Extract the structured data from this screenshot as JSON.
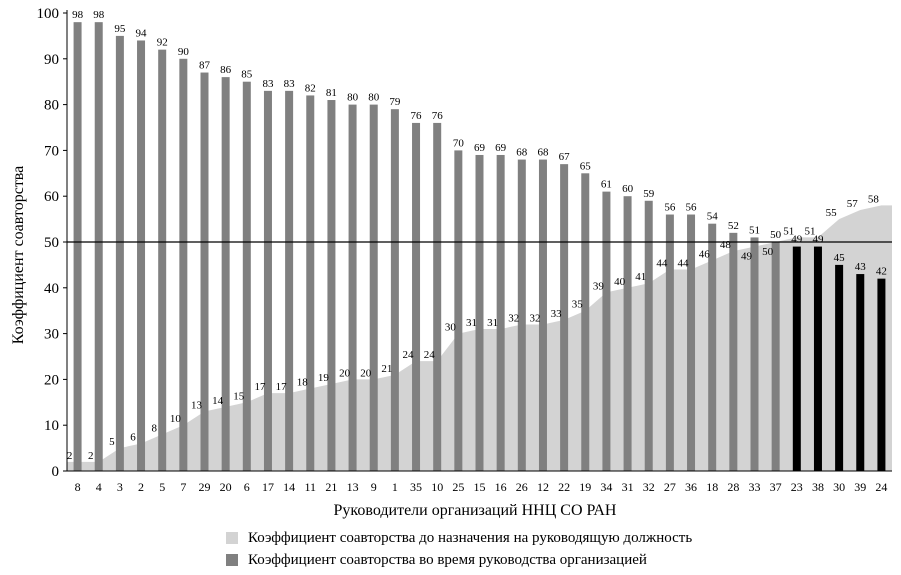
{
  "chart_data": {
    "type": "bar",
    "ylabel": "Коэффициент соавторства",
    "xlabel": "Руководители организаций ННЦ СО РАН",
    "ylim": [
      0,
      100
    ],
    "yticks": [
      "0",
      "10",
      "20",
      "30",
      "40",
      "50",
      "60",
      "70",
      "80",
      "90",
      "100"
    ],
    "reference_line": 50,
    "categories": [
      "8",
      "4",
      "3",
      "2",
      "5",
      "7",
      "29",
      "20",
      "6",
      "17",
      "14",
      "11",
      "21",
      "13",
      "9",
      "1",
      "35",
      "10",
      "25",
      "15",
      "16",
      "26",
      "12",
      "22",
      "19",
      "34",
      "31",
      "32",
      "27",
      "36",
      "18",
      "28",
      "33",
      "37",
      "23",
      "38",
      "30",
      "39",
      "24"
    ],
    "series": [
      {
        "name": "Коэффициент соавторства до назначения на  руководящую должность",
        "kind": "area",
        "color": "#d3d3d3",
        "values": [
          2,
          2,
          5,
          6,
          8,
          10,
          13,
          14,
          15,
          17,
          17,
          18,
          19,
          20,
          20,
          21,
          24,
          24,
          30,
          31,
          31,
          32,
          32,
          33,
          35,
          39,
          40,
          41,
          44,
          44,
          46,
          48,
          49,
          50,
          51,
          51,
          55,
          57,
          58
        ]
      },
      {
        "name": "Коэффициент соавторства во время руководства организацией",
        "kind": "bar",
        "color": "#808080",
        "highlight_color": "#000000",
        "values": [
          98,
          98,
          95,
          94,
          92,
          90,
          87,
          86,
          85,
          83,
          83,
          82,
          81,
          80,
          80,
          79,
          76,
          76,
          70,
          69,
          69,
          68,
          68,
          67,
          65,
          61,
          60,
          59,
          56,
          56,
          54,
          52,
          51,
          50,
          49,
          49,
          45,
          43,
          42
        ]
      }
    ]
  },
  "legend": [
    {
      "label": "Коэффициент соавторства до назначения на  руководящую должность",
      "color": "#d3d3d3"
    },
    {
      "label": "Коэффициент соавторства во время руководства организацией",
      "color": "#808080"
    }
  ]
}
